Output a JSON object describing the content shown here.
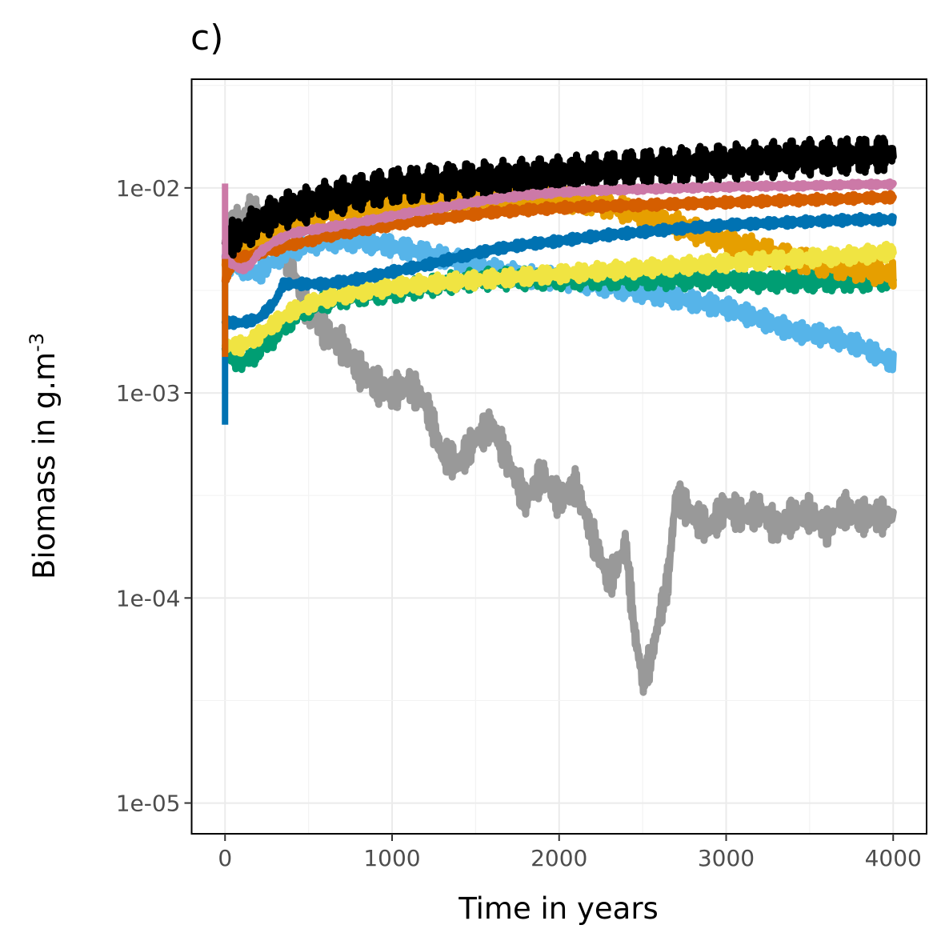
{
  "chart_data": {
    "type": "line",
    "panel_label": "c)",
    "xlabel": "Time in years",
    "ylabel_main": "Biomass in g.m",
    "ylabel_sup": "-3",
    "xlim": [
      -200,
      4200
    ],
    "ylim_log10": [
      -5.15,
      -1.47
    ],
    "y_scale": "log10",
    "x_ticks": [
      0,
      1000,
      2000,
      3000,
      4000
    ],
    "x_tick_labels": [
      "0",
      "1000",
      "2000",
      "3000",
      "4000"
    ],
    "y_ticks": [
      0.01,
      0.001,
      0.0001,
      1e-05
    ],
    "y_tick_labels": [
      "1e-02",
      "1e-03",
      "1e-04",
      "1e-05"
    ],
    "grid": true,
    "legend": "none",
    "series": [
      {
        "color": "#999999",
        "amp": 0.09,
        "x": [
          0,
          50,
          100,
          150,
          200,
          300,
          400,
          500,
          600,
          700,
          800,
          900,
          1000,
          1100,
          1200,
          1300,
          1400,
          1500,
          1600,
          1700,
          1800,
          1900,
          2000,
          2100,
          2200,
          2300,
          2400,
          2450,
          2500,
          2550,
          2600,
          2650,
          2700,
          2800,
          2900,
          3000,
          3100,
          3200,
          3300,
          3400,
          3500,
          3600,
          3700,
          3800,
          3900,
          4000
        ],
        "y": [
          0.0055,
          0.0065,
          0.007,
          0.0075,
          0.0075,
          0.0065,
          0.004,
          0.0025,
          0.002,
          0.0017,
          0.0013,
          0.0011,
          0.001,
          0.0011,
          0.0009,
          0.0005,
          0.00045,
          0.0006,
          0.0007,
          0.00045,
          0.0003,
          0.0004,
          0.0003,
          0.00035,
          0.0002,
          0.00012,
          0.00018,
          7e-05,
          4e-05,
          5e-05,
          8e-05,
          0.00012,
          0.00032,
          0.00025,
          0.00022,
          0.00028,
          0.00025,
          0.00027,
          0.00022,
          0.00025,
          0.00026,
          0.00022,
          0.00027,
          0.00025,
          0.00025,
          0.00025
        ]
      },
      {
        "color": "#56b4e9",
        "amp": 0.05,
        "x": [
          0,
          100,
          200,
          300,
          400,
          500,
          600,
          800,
          1000,
          1200,
          1400,
          1600,
          1800,
          2000,
          2200,
          2400,
          2600,
          2800,
          3000,
          3200,
          3400,
          3600,
          3800,
          4000
        ],
        "y": [
          0.0042,
          0.0041,
          0.0038,
          0.0045,
          0.005,
          0.0053,
          0.0055,
          0.0055,
          0.0052,
          0.0048,
          0.0044,
          0.004,
          0.0037,
          0.0036,
          0.0034,
          0.0032,
          0.003,
          0.0028,
          0.0026,
          0.0023,
          0.002,
          0.0019,
          0.0017,
          0.0014
        ]
      },
      {
        "color": "#009e73",
        "amp": 0.05,
        "x": [
          0,
          100,
          200,
          300,
          400,
          500,
          600,
          700,
          800,
          1000,
          1200,
          1400,
          1600,
          1800,
          2000,
          2200,
          2400,
          2600,
          2800,
          3000,
          3200,
          3400,
          3600,
          3800,
          4000
        ],
        "y": [
          0.0016,
          0.0014,
          0.0016,
          0.0019,
          0.0023,
          0.0026,
          0.0028,
          0.0029,
          0.003,
          0.0031,
          0.0033,
          0.0035,
          0.0036,
          0.0036,
          0.0036,
          0.0036,
          0.0036,
          0.0036,
          0.0036,
          0.0036,
          0.0035,
          0.0035,
          0.0035,
          0.0035,
          0.0036
        ]
      },
      {
        "color": "#e69f00",
        "amp": 0.06,
        "x": [
          0,
          100,
          200,
          300,
          400,
          500,
          600,
          800,
          1000,
          1200,
          1400,
          1600,
          1800,
          2000,
          2200,
          2400,
          2600,
          2800,
          3000,
          3200,
          3400,
          3600,
          3800,
          4000
        ],
        "y": [
          0.0045,
          0.005,
          0.0055,
          0.0062,
          0.0068,
          0.0072,
          0.0075,
          0.0078,
          0.0082,
          0.0085,
          0.0088,
          0.009,
          0.009,
          0.0088,
          0.0085,
          0.0078,
          0.007,
          0.0062,
          0.0055,
          0.005,
          0.0045,
          0.0042,
          0.004,
          0.0038
        ]
      },
      {
        "color": "#f0e442",
        "amp": 0.04,
        "x": [
          0,
          100,
          200,
          300,
          400,
          500,
          600,
          700,
          800,
          1000,
          1200,
          1400,
          1600,
          1800,
          2000,
          2200,
          2400,
          2600,
          2800,
          3000,
          3200,
          3400,
          3600,
          3800,
          4000
        ],
        "y": [
          0.0017,
          0.0017,
          0.0019,
          0.0022,
          0.0025,
          0.0027,
          0.0029,
          0.003,
          0.0031,
          0.0033,
          0.0034,
          0.0035,
          0.0036,
          0.0037,
          0.0038,
          0.0039,
          0.004,
          0.0041,
          0.0042,
          0.0043,
          0.0044,
          0.0045,
          0.0046,
          0.0047,
          0.0049
        ]
      },
      {
        "color": "#0072b2",
        "amp": 0.02,
        "x": [
          0,
          50,
          100,
          200,
          300,
          350,
          400,
          600,
          800,
          1000,
          1200,
          1400,
          1600,
          1800,
          2000,
          2200,
          2400,
          2600,
          2800,
          3000,
          3200,
          3400,
          3600,
          3800,
          4000
        ],
        "y": [
          0.0022,
          0.0022,
          0.0022,
          0.0023,
          0.0028,
          0.0034,
          0.0034,
          0.0034,
          0.0036,
          0.0039,
          0.0042,
          0.0046,
          0.005,
          0.0053,
          0.0055,
          0.0058,
          0.006,
          0.0062,
          0.0064,
          0.0066,
          0.0067,
          0.0068,
          0.0069,
          0.007,
          0.007
        ]
      },
      {
        "color": "#d55e00",
        "amp": 0.02,
        "x": [
          0,
          50,
          100,
          200,
          300,
          400,
          500,
          600,
          800,
          1000,
          1200,
          1400,
          1600,
          1800,
          2000,
          2200,
          2400,
          2600,
          2800,
          3000,
          3200,
          3400,
          3600,
          3800,
          4000
        ],
        "y": [
          0.0036,
          0.0042,
          0.0046,
          0.0048,
          0.005,
          0.0053,
          0.0055,
          0.0058,
          0.0062,
          0.0066,
          0.007,
          0.0073,
          0.0076,
          0.0078,
          0.008,
          0.0081,
          0.0082,
          0.0083,
          0.0084,
          0.0085,
          0.0086,
          0.0087,
          0.0088,
          0.0089,
          0.009
        ]
      },
      {
        "color": "#000000",
        "amp": 0.09,
        "x": [
          0,
          100,
          200,
          300,
          400,
          500,
          600,
          800,
          1000,
          1200,
          1400,
          1600,
          1800,
          2000,
          2200,
          2400,
          2600,
          2800,
          3000,
          3200,
          3400,
          3600,
          3800,
          4000
        ],
        "y": [
          0.0055,
          0.006,
          0.0068,
          0.0075,
          0.008,
          0.0083,
          0.0088,
          0.0095,
          0.0102,
          0.0105,
          0.0108,
          0.011,
          0.0113,
          0.0116,
          0.012,
          0.0124,
          0.0127,
          0.013,
          0.0133,
          0.0136,
          0.014,
          0.0142,
          0.0144,
          0.0146
        ]
      },
      {
        "color": "#cc79a7",
        "amp": 0.012,
        "x": [
          0,
          50,
          100,
          150,
          200,
          300,
          400,
          500,
          600,
          800,
          1000,
          1200,
          1400,
          1600,
          1800,
          2000,
          2200,
          2400,
          2600,
          2800,
          3000,
          3200,
          3400,
          3600,
          3800,
          4000
        ],
        "y": [
          0.0045,
          0.0042,
          0.004,
          0.0042,
          0.0048,
          0.0055,
          0.006,
          0.0062,
          0.0064,
          0.0068,
          0.0073,
          0.0078,
          0.0083,
          0.0088,
          0.0092,
          0.0095,
          0.0097,
          0.0098,
          0.0099,
          0.01,
          0.0101,
          0.0102,
          0.0102,
          0.0103,
          0.0104,
          0.0104
        ]
      }
    ],
    "initial_spikes": [
      {
        "color": "#0072b2",
        "x": 0,
        "y_low": 0.0007,
        "y_high": 0.0035
      },
      {
        "color": "#cc79a7",
        "x": 0,
        "y_low": 0.0045,
        "y_high": 0.0105
      },
      {
        "color": "#d55e00",
        "x": 0,
        "y_low": 0.0015,
        "y_high": 0.0045
      }
    ]
  }
}
